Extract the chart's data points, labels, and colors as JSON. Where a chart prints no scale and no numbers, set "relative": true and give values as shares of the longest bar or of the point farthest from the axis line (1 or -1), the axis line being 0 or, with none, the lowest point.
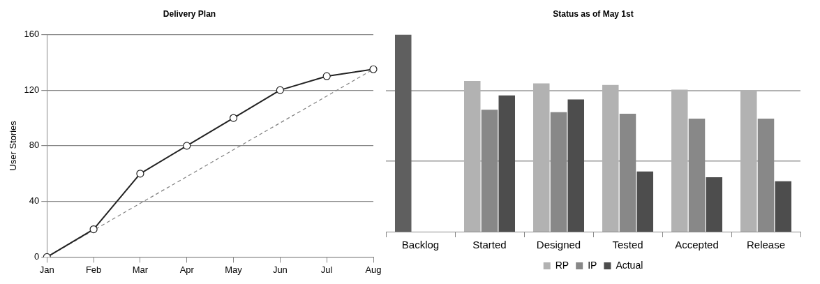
{
  "chart_data": [
    {
      "type": "line",
      "title": "Delivery Plan",
      "ylabel": "User Stories",
      "categories": [
        "Jan",
        "Feb",
        "Mar",
        "Apr",
        "May",
        "Jun",
        "Jul",
        "Aug"
      ],
      "ylim": [
        0,
        160
      ],
      "yticks": [
        0,
        40,
        80,
        120,
        160
      ],
      "grid": "y",
      "legend": false,
      "series": [
        {
          "color": "#222222",
          "values": [
            0,
            20,
            60,
            80,
            100,
            120,
            130,
            135
          ],
          "marker": "circle",
          "line_style": "solid"
        },
        {
          "color": "#808080",
          "values": [
            0,
            null,
            null,
            null,
            null,
            null,
            null,
            135
          ],
          "marker": "none",
          "line_style": "dashed"
        }
      ]
    },
    {
      "type": "bar",
      "title": "Status as of May 1st",
      "categories": [
        "Backlog",
        "Started",
        "Designed",
        "Tested",
        "Accepted",
        "Release"
      ],
      "relative": true,
      "legend": "bottom",
      "ref_lines": [
        {
          "axis": "y",
          "value": 0.358,
          "color": "#999999"
        },
        {
          "axis": "y",
          "value": 0.715,
          "color": "#999999"
        }
      ],
      "series": [
        {
          "name": "RP",
          "color": "#b2b2b2",
          "colors": [
            "#5f5f5f",
            "#b2b2b2",
            "#b2b2b2",
            "#b2b2b2",
            "#b2b2b2",
            "#b2b2b2"
          ],
          "values": [
            1,
            0.764,
            0.752,
            0.744,
            0.72,
            0.715
          ]
        },
        {
          "name": "IP",
          "color": "#888888",
          "values": [
            null,
            0.618,
            0.606,
            0.598,
            0.573,
            0.573
          ]
        },
        {
          "name": "Actual",
          "color": "#4d4d4d",
          "values": [
            null,
            0.691,
            0.671,
            0.305,
            0.276,
            0.256
          ]
        }
      ]
    }
  ]
}
